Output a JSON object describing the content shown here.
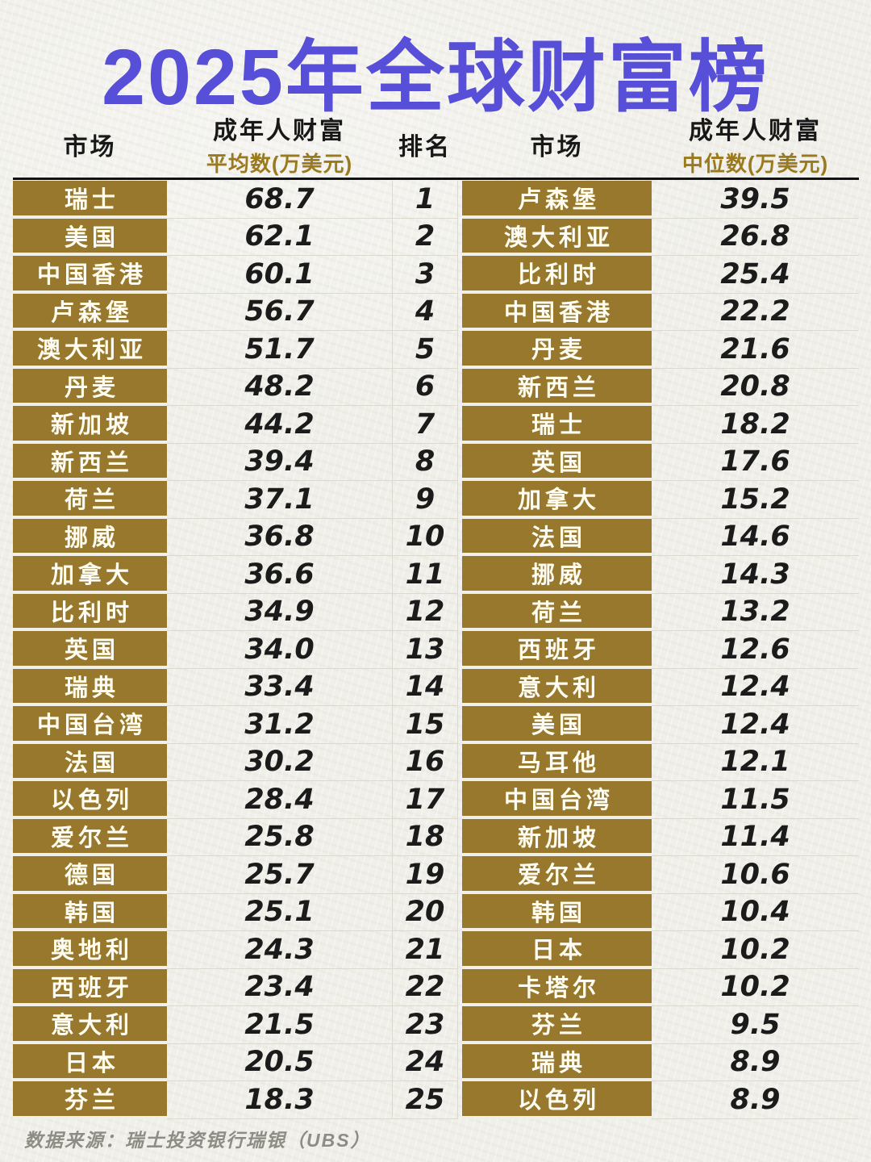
{
  "title": "2025年全球财富榜",
  "headers": {
    "market": "市场",
    "wealth": "成年人财富",
    "avg_sub": "平均数(万美元)",
    "rank": "排名",
    "median_sub": "中位数(万美元)"
  },
  "footer": "数据来源：瑞士投资银行瑞银（UBS）",
  "colors": {
    "title": "#584fd8",
    "gold_cell": "#97782c",
    "gold_subheader": "#9a7a1c",
    "paper": "#f0efe9",
    "value_text": "#1b1b1b",
    "footer_text": "#8d8c85"
  },
  "rows": [
    {
      "rank": "1",
      "avg_market": "瑞士",
      "avg_value": "68.7",
      "med_market": "卢森堡",
      "med_value": "39.5"
    },
    {
      "rank": "2",
      "avg_market": "美国",
      "avg_value": "62.1",
      "med_market": "澳大利亚",
      "med_value": "26.8"
    },
    {
      "rank": "3",
      "avg_market": "中国香港",
      "avg_value": "60.1",
      "med_market": "比利时",
      "med_value": "25.4"
    },
    {
      "rank": "4",
      "avg_market": "卢森堡",
      "avg_value": "56.7",
      "med_market": "中国香港",
      "med_value": "22.2"
    },
    {
      "rank": "5",
      "avg_market": "澳大利亚",
      "avg_value": "51.7",
      "med_market": "丹麦",
      "med_value": "21.6"
    },
    {
      "rank": "6",
      "avg_market": "丹麦",
      "avg_value": "48.2",
      "med_market": "新西兰",
      "med_value": "20.8"
    },
    {
      "rank": "7",
      "avg_market": "新加坡",
      "avg_value": "44.2",
      "med_market": "瑞士",
      "med_value": "18.2"
    },
    {
      "rank": "8",
      "avg_market": "新西兰",
      "avg_value": "39.4",
      "med_market": "英国",
      "med_value": "17.6"
    },
    {
      "rank": "9",
      "avg_market": "荷兰",
      "avg_value": "37.1",
      "med_market": "加拿大",
      "med_value": "15.2"
    },
    {
      "rank": "10",
      "avg_market": "挪威",
      "avg_value": "36.8",
      "med_market": "法国",
      "med_value": "14.6"
    },
    {
      "rank": "11",
      "avg_market": "加拿大",
      "avg_value": "36.6",
      "med_market": "挪威",
      "med_value": "14.3"
    },
    {
      "rank": "12",
      "avg_market": "比利时",
      "avg_value": "34.9",
      "med_market": "荷兰",
      "med_value": "13.2"
    },
    {
      "rank": "13",
      "avg_market": "英国",
      "avg_value": "34.0",
      "med_market": "西班牙",
      "med_value": "12.6"
    },
    {
      "rank": "14",
      "avg_market": "瑞典",
      "avg_value": "33.4",
      "med_market": "意大利",
      "med_value": "12.4"
    },
    {
      "rank": "15",
      "avg_market": "中国台湾",
      "avg_value": "31.2",
      "med_market": "美国",
      "med_value": "12.4"
    },
    {
      "rank": "16",
      "avg_market": "法国",
      "avg_value": "30.2",
      "med_market": "马耳他",
      "med_value": "12.1"
    },
    {
      "rank": "17",
      "avg_market": "以色列",
      "avg_value": "28.4",
      "med_market": "中国台湾",
      "med_value": "11.5"
    },
    {
      "rank": "18",
      "avg_market": "爱尔兰",
      "avg_value": "25.8",
      "med_market": "新加坡",
      "med_value": "11.4"
    },
    {
      "rank": "19",
      "avg_market": "德国",
      "avg_value": "25.7",
      "med_market": "爱尔兰",
      "med_value": "10.6"
    },
    {
      "rank": "20",
      "avg_market": "韩国",
      "avg_value": "25.1",
      "med_market": "韩国",
      "med_value": "10.4"
    },
    {
      "rank": "21",
      "avg_market": "奥地利",
      "avg_value": "24.3",
      "med_market": "日本",
      "med_value": "10.2"
    },
    {
      "rank": "22",
      "avg_market": "西班牙",
      "avg_value": "23.4",
      "med_market": "卡塔尔",
      "med_value": "10.2"
    },
    {
      "rank": "23",
      "avg_market": "意大利",
      "avg_value": "21.5",
      "med_market": "芬兰",
      "med_value": "9.5"
    },
    {
      "rank": "24",
      "avg_market": "日本",
      "avg_value": "20.5",
      "med_market": "瑞典",
      "med_value": "8.9"
    },
    {
      "rank": "25",
      "avg_market": "芬兰",
      "avg_value": "18.3",
      "med_market": "以色列",
      "med_value": "8.9"
    }
  ],
  "chart_data": {
    "type": "table",
    "title": "2025年全球财富榜",
    "source": "数据来源：瑞士投资银行瑞银（UBS）",
    "tables": [
      {
        "name": "成年人财富平均数(万美元)",
        "columns": [
          "市场",
          "成年人财富平均数(万美元)",
          "排名"
        ],
        "rows": [
          [
            "瑞士",
            68.7,
            1
          ],
          [
            "美国",
            62.1,
            2
          ],
          [
            "中国香港",
            60.1,
            3
          ],
          [
            "卢森堡",
            56.7,
            4
          ],
          [
            "澳大利亚",
            51.7,
            5
          ],
          [
            "丹麦",
            48.2,
            6
          ],
          [
            "新加坡",
            44.2,
            7
          ],
          [
            "新西兰",
            39.4,
            8
          ],
          [
            "荷兰",
            37.1,
            9
          ],
          [
            "挪威",
            36.8,
            10
          ],
          [
            "加拿大",
            36.6,
            11
          ],
          [
            "比利时",
            34.9,
            12
          ],
          [
            "英国",
            34.0,
            13
          ],
          [
            "瑞典",
            33.4,
            14
          ],
          [
            "中国台湾",
            31.2,
            15
          ],
          [
            "法国",
            30.2,
            16
          ],
          [
            "以色列",
            28.4,
            17
          ],
          [
            "爱尔兰",
            25.8,
            18
          ],
          [
            "德国",
            25.7,
            19
          ],
          [
            "韩国",
            25.1,
            20
          ],
          [
            "奥地利",
            24.3,
            21
          ],
          [
            "西班牙",
            23.4,
            22
          ],
          [
            "意大利",
            21.5,
            23
          ],
          [
            "日本",
            20.5,
            24
          ],
          [
            "芬兰",
            18.3,
            25
          ]
        ]
      },
      {
        "name": "成年人财富中位数(万美元)",
        "columns": [
          "排名",
          "市场",
          "成年人财富中位数(万美元)"
        ],
        "rows": [
          [
            1,
            "卢森堡",
            39.5
          ],
          [
            2,
            "澳大利亚",
            26.8
          ],
          [
            3,
            "比利时",
            25.4
          ],
          [
            4,
            "中国香港",
            22.2
          ],
          [
            5,
            "丹麦",
            21.6
          ],
          [
            6,
            "新西兰",
            20.8
          ],
          [
            7,
            "瑞士",
            18.2
          ],
          [
            8,
            "英国",
            17.6
          ],
          [
            9,
            "加拿大",
            15.2
          ],
          [
            10,
            "法国",
            14.6
          ],
          [
            11,
            "挪威",
            14.3
          ],
          [
            12,
            "荷兰",
            13.2
          ],
          [
            13,
            "西班牙",
            12.6
          ],
          [
            14,
            "意大利",
            12.4
          ],
          [
            15,
            "美国",
            12.4
          ],
          [
            16,
            "马耳他",
            12.1
          ],
          [
            17,
            "中国台湾",
            11.5
          ],
          [
            18,
            "新加坡",
            11.4
          ],
          [
            19,
            "爱尔兰",
            10.6
          ],
          [
            20,
            "韩国",
            10.4
          ],
          [
            21,
            "日本",
            10.2
          ],
          [
            22,
            "卡塔尔",
            10.2
          ],
          [
            23,
            "芬兰",
            9.5
          ],
          [
            24,
            "瑞典",
            8.9
          ],
          [
            25,
            "以色列",
            8.9
          ]
        ]
      }
    ]
  }
}
